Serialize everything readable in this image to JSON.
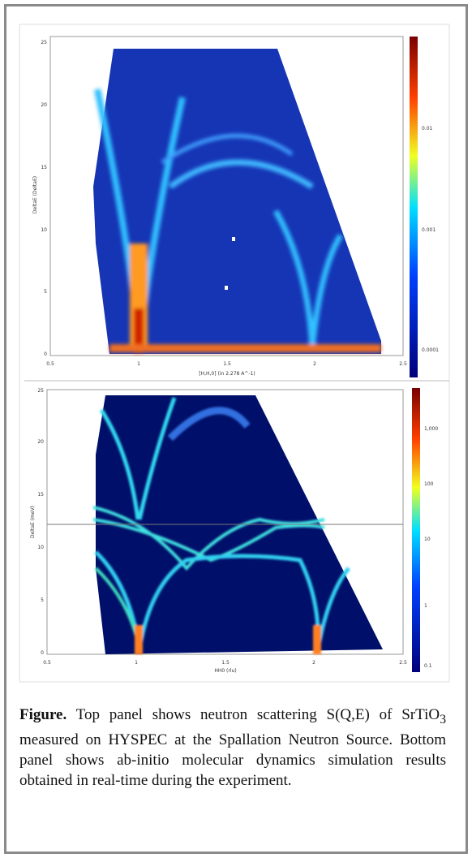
{
  "panels": [
    {
      "y_label": "DeltaE (DeltaE)",
      "x_label": "[H,H,0] (in 2.278 A^-1)",
      "xticks": [
        "0.5",
        "1",
        "1.5",
        "2",
        "2.5"
      ],
      "yticks": [
        "0",
        "5",
        "10",
        "15",
        "20",
        "25"
      ],
      "colorbar_ticks": [
        "0.01",
        "0.001",
        "0.0001"
      ]
    },
    {
      "y_label": "DeltaE (meV)",
      "x_label": "HH0 (rlu)",
      "xticks": [
        "0.5",
        "1",
        "1.5",
        "2",
        "2.5"
      ],
      "yticks": [
        "0",
        "5",
        "10",
        "15",
        "20",
        "25"
      ],
      "colorbar_ticks": [
        "1,000",
        "100",
        "10",
        "1",
        "0.1"
      ]
    }
  ],
  "caption": {
    "label": "Figure.",
    "text_before": "Top panel shows neutron scattering S(Q,E) of SrTiO",
    "subscript": "3",
    "text_after": " measured on HYSPEC at the Spallation Neutron Source. Bottom panel shows ab-initio molecular dynamics simulation results obtained in real-time during the experiment."
  }
}
